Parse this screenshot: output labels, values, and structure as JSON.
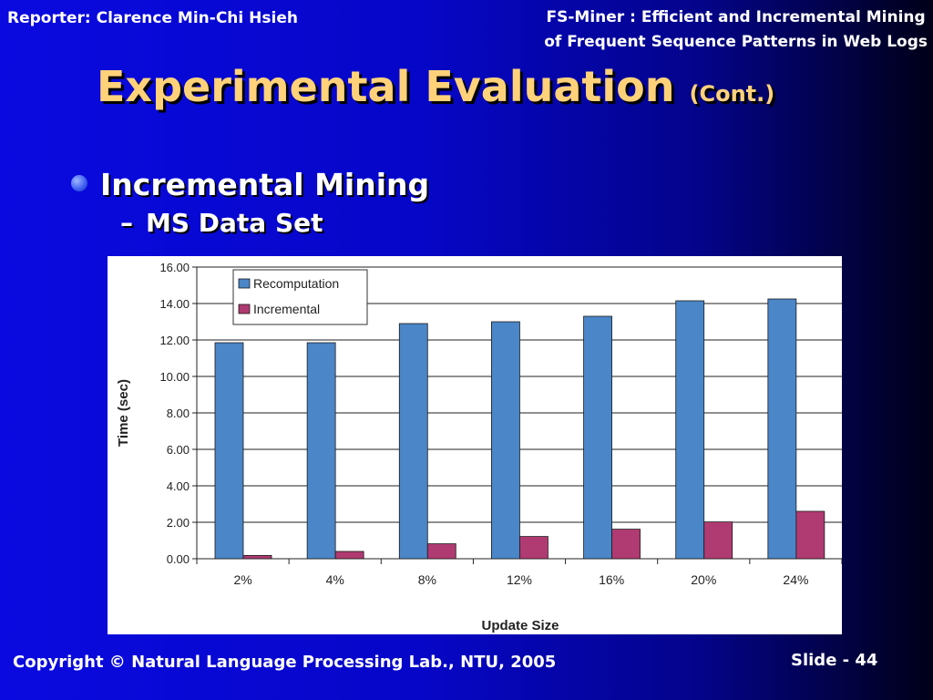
{
  "header": {
    "reporter": "Reporter: Clarence Min-Chi Hsieh",
    "paper_title_line1": "FS-Miner : Efficient and Incremental Mining",
    "paper_title_line2": "of Frequent Sequence Patterns in Web Logs"
  },
  "slide_title": {
    "main": "Experimental Evaluation",
    "suffix": "(Cont.)"
  },
  "bullets": {
    "level1": "Incremental Mining",
    "level2_dash": "–",
    "level2": "MS Data Set"
  },
  "footer": {
    "copyright": "Copyright © Natural Language Processing Lab., NTU,  2005",
    "slide_number": "Slide - 44"
  },
  "colors": {
    "title": "#ffd27a",
    "recomputation": "#4a86c8",
    "incremental": "#b03a72"
  },
  "chart_data": {
    "type": "bar",
    "categories": [
      "2%",
      "4%",
      "8%",
      "12%",
      "16%",
      "20%",
      "24%"
    ],
    "series": [
      {
        "name": "Recomputation",
        "values": [
          11.85,
          11.85,
          12.9,
          13.0,
          13.3,
          14.15,
          14.25
        ]
      },
      {
        "name": "Incremental",
        "values": [
          0.18,
          0.4,
          0.82,
          1.22,
          1.62,
          2.02,
          2.6
        ]
      }
    ],
    "xlabel": "Update Size",
    "ylabel": "Time (sec)",
    "ylim": [
      0,
      16
    ],
    "yticks": [
      "0.00",
      "2.00",
      "4.00",
      "6.00",
      "8.00",
      "10.00",
      "12.00",
      "14.00",
      "16.00"
    ],
    "grid": true,
    "legend_position": "top-left"
  }
}
